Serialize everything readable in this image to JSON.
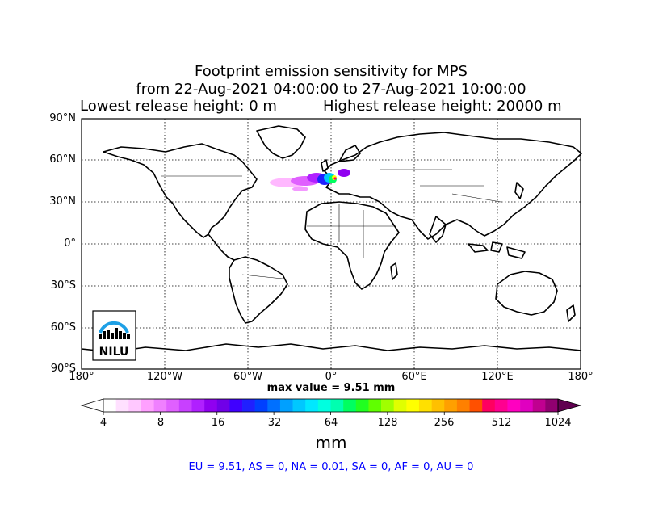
{
  "title_line1": "Footprint emission sensitivity for MPS",
  "title_line2": "from 22-Aug-2021 04:00:00 to 27-Aug-2021 10:00:00",
  "title_line3_left": "Lowest release height: 0 m",
  "title_line3_right": "Highest release height: 20000 m",
  "lat_labels": [
    "90°N",
    "60°N",
    "30°N",
    "0°",
    "30°S",
    "60°S",
    "90°S"
  ],
  "lon_labels": [
    "180°",
    "120°W",
    "60°W",
    "0°",
    "60°E",
    "120°E",
    "180°"
  ],
  "max_value": "max value = 9.51 mm",
  "logo_text": "NILU",
  "colorbar": {
    "ticks": [
      "4",
      "8",
      "16",
      "32",
      "64",
      "128",
      "256",
      "512",
      "1024"
    ],
    "unit": "mm",
    "colors": [
      "#ffffff",
      "#ffe0ff",
      "#ffc8ff",
      "#ffa0ff",
      "#f080ff",
      "#e060ff",
      "#c840ff",
      "#b020ff",
      "#9000f0",
      "#7000e8",
      "#4000ff",
      "#2020ff",
      "#0040ff",
      "#0070ff",
      "#00a0ff",
      "#00c8ff",
      "#00e8ff",
      "#00ffe0",
      "#00ffb0",
      "#00ff60",
      "#20ff20",
      "#60ff00",
      "#a0ff00",
      "#e0ff00",
      "#ffff00",
      "#ffe000",
      "#ffc000",
      "#ffa000",
      "#ff8000",
      "#ff5000",
      "#ff0060",
      "#ff0090",
      "#ff00c0",
      "#e000c0",
      "#c00090",
      "#900070"
    ]
  },
  "summary": "EU = 9.51,  AS = 0,  NA = 0.01,  SA = 0,  AF = 0,  AU = 0",
  "colors": {
    "summary": "#0000ff",
    "frame": "#000000"
  }
}
